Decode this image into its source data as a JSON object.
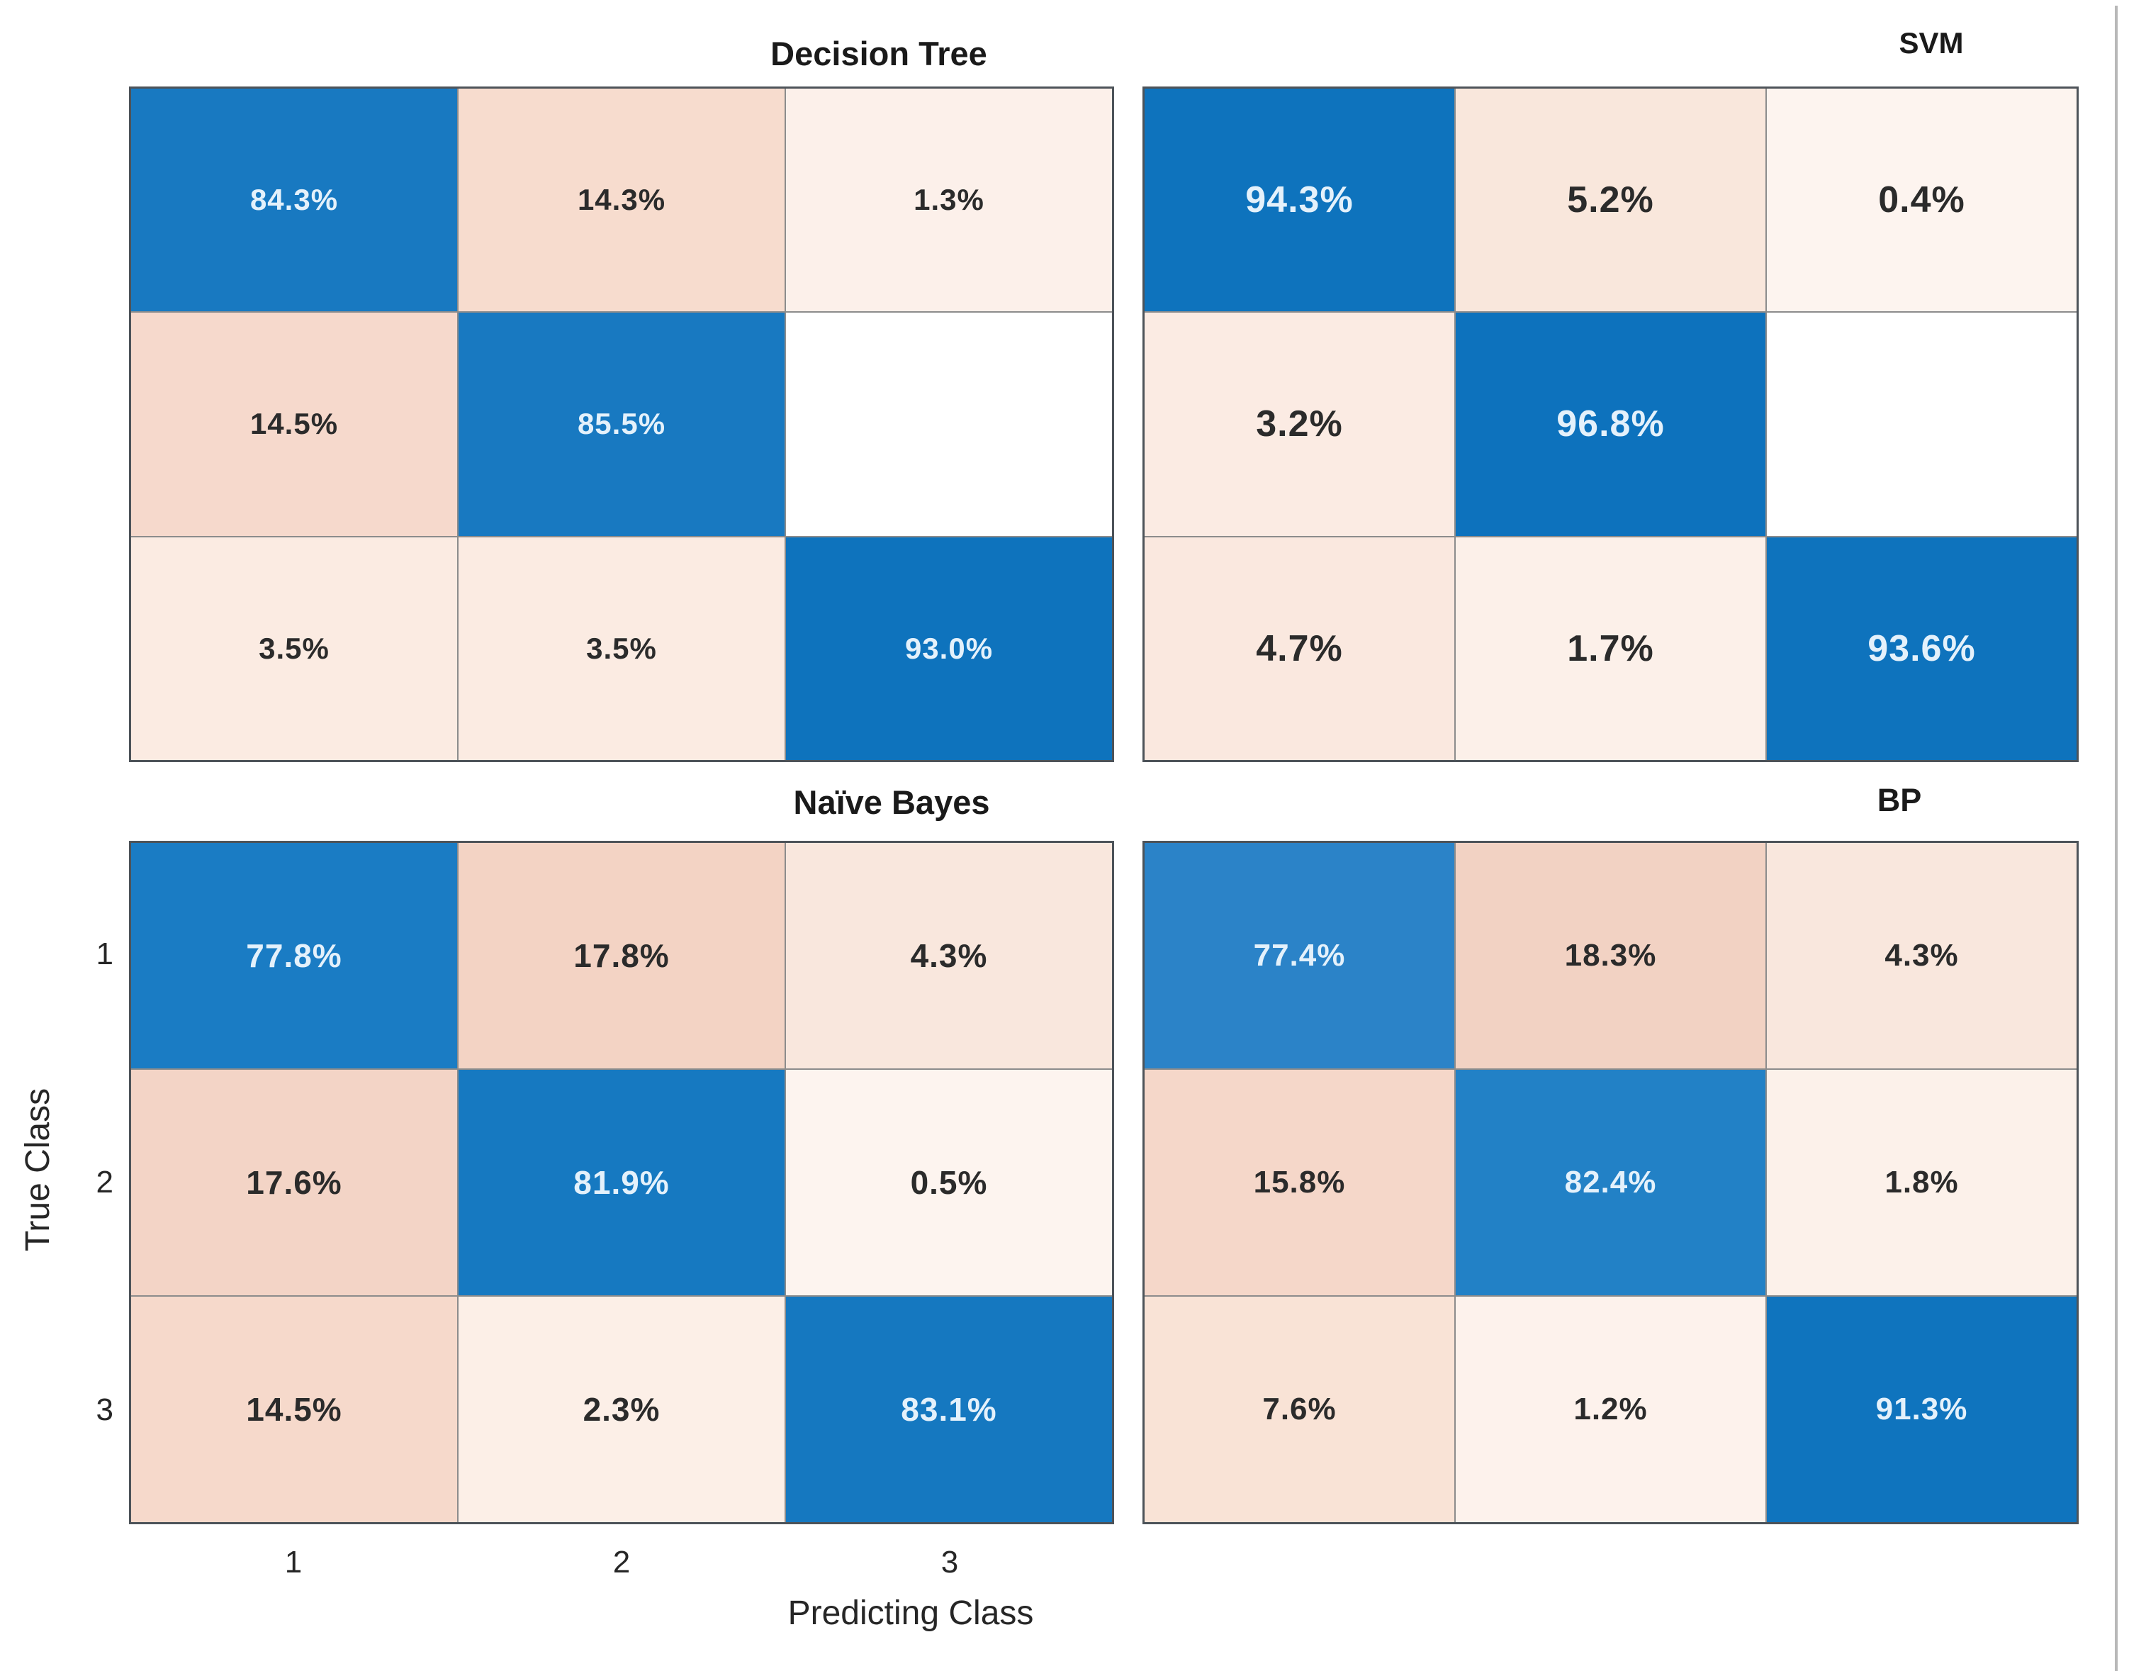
{
  "figure": {
    "xlabel": "Predicting Class",
    "ylabel": "True Class",
    "x_ticks": [
      "1",
      "2",
      "3"
    ],
    "y_ticks": [
      "1",
      "2",
      "3"
    ]
  },
  "colors": {
    "diagonal_blue_strong": "#0e73bd",
    "diagonal_blue_medium": "#1879c1",
    "diagonal_blue_light": "#2b83c8",
    "offdiagonal_pink_max": "#f2d2c3",
    "offdiagonal_pink_min": "#fdf4ef",
    "empty_cell": "#ffffff",
    "grid_line": "#8c8c8c",
    "outer_border": "#4d5359",
    "text_dark": "#2b2b2b",
    "text_light": "#e4f1fb"
  },
  "chart_data": [
    {
      "type": "heatmap",
      "title": "Decision Tree",
      "xlabel": "Predicting Class",
      "ylabel": "True Class",
      "rows": [
        "1",
        "2",
        "3"
      ],
      "cols": [
        "1",
        "2",
        "3"
      ],
      "values": [
        [
          84.3,
          14.3,
          1.3
        ],
        [
          14.5,
          85.5,
          null
        ],
        [
          3.5,
          3.5,
          93.0
        ]
      ],
      "labels": [
        [
          "84.3%",
          "14.3%",
          "1.3%"
        ],
        [
          "14.5%",
          "85.5%",
          ""
        ],
        [
          "3.5%",
          "3.5%",
          "93.0%"
        ]
      ],
      "cell_colors": [
        [
          "#1879c1",
          "#f7dcce",
          "#fcf0ea"
        ],
        [
          "#f6d9cc",
          "#1879c1",
          "#ffffff"
        ],
        [
          "#fbebe2",
          "#fbebe2",
          "#0e73bd"
        ]
      ],
      "text_colors": [
        [
          "#e4f1fb",
          "#2b2b2b",
          "#2b2b2b"
        ],
        [
          "#2b2b2b",
          "#e4f1fb",
          "#2b2b2b"
        ],
        [
          "#2b2b2b",
          "#2b2b2b",
          "#e4f1fb"
        ]
      ]
    },
    {
      "type": "heatmap",
      "title": "SVM",
      "xlabel": "Predicting Class",
      "ylabel": "True Class",
      "rows": [
        "1",
        "2",
        "3"
      ],
      "cols": [
        "1",
        "2",
        "3"
      ],
      "values": [
        [
          94.3,
          5.2,
          0.4
        ],
        [
          3.2,
          96.8,
          null
        ],
        [
          4.7,
          1.7,
          93.6
        ]
      ],
      "labels": [
        [
          "94.3%",
          "5.2%",
          "0.4%"
        ],
        [
          "3.2%",
          "96.8%",
          ""
        ],
        [
          "4.7%",
          "1.7%",
          "93.6%"
        ]
      ],
      "cell_colors": [
        [
          "#0e73bd",
          "#f9e7dc",
          "#fdf4ef"
        ],
        [
          "#fbebe3",
          "#0d72bd",
          "#ffffff"
        ],
        [
          "#fae8df",
          "#fcf0e9",
          "#0e73bd"
        ]
      ],
      "text_colors": [
        [
          "#e4f1fb",
          "#2b2b2b",
          "#2b2b2b"
        ],
        [
          "#2b2b2b",
          "#e4f1fb",
          "#2b2b2b"
        ],
        [
          "#2b2b2b",
          "#2b2b2b",
          "#e4f1fb"
        ]
      ]
    },
    {
      "type": "heatmap",
      "title": "Naïve Bayes",
      "xlabel": "Predicting Class",
      "ylabel": "True Class",
      "rows": [
        "1",
        "2",
        "3"
      ],
      "cols": [
        "1",
        "2",
        "3"
      ],
      "values": [
        [
          77.8,
          17.8,
          4.3
        ],
        [
          17.6,
          81.9,
          0.5
        ],
        [
          14.5,
          2.3,
          83.1
        ]
      ],
      "labels": [
        [
          "77.8%",
          "17.8%",
          "4.3%"
        ],
        [
          "17.6%",
          "81.9%",
          "0.5%"
        ],
        [
          "14.5%",
          "2.3%",
          "83.1%"
        ]
      ],
      "cell_colors": [
        [
          "#1a7cc4",
          "#f3d3c4",
          "#f9e7dd"
        ],
        [
          "#f3d4c6",
          "#1679c1",
          "#fdf4ef"
        ],
        [
          "#f6d9cb",
          "#fcefe7",
          "#1578c0"
        ]
      ],
      "text_colors": [
        [
          "#e4f1fb",
          "#2b2b2b",
          "#2b2b2b"
        ],
        [
          "#2b2b2b",
          "#e4f1fb",
          "#2b2b2b"
        ],
        [
          "#2b2b2b",
          "#2b2b2b",
          "#e4f1fb"
        ]
      ]
    },
    {
      "type": "heatmap",
      "title": "BP",
      "xlabel": "Predicting Class",
      "ylabel": "True Class",
      "rows": [
        "1",
        "2",
        "3"
      ],
      "cols": [
        "1",
        "2",
        "3"
      ],
      "values": [
        [
          77.4,
          18.3,
          4.3
        ],
        [
          15.8,
          82.4,
          1.8
        ],
        [
          7.6,
          1.2,
          91.3
        ]
      ],
      "labels": [
        [
          "77.4%",
          "18.3%",
          "4.3%"
        ],
        [
          "15.8%",
          "82.4%",
          "1.8%"
        ],
        [
          "7.6%",
          "1.2%",
          "91.3%"
        ]
      ],
      "cell_colors": [
        [
          "#2b83c8",
          "#f2d2c3",
          "#f9e7dd"
        ],
        [
          "#f5d7c9",
          "#2281c6",
          "#fcf1ea"
        ],
        [
          "#f9e3d6",
          "#fdf2ec",
          "#0f74be"
        ]
      ],
      "text_colors": [
        [
          "#e4f1fb",
          "#2b2b2b",
          "#2b2b2b"
        ],
        [
          "#2b2b2b",
          "#e4f1fb",
          "#2b2b2b"
        ],
        [
          "#2b2b2b",
          "#2b2b2b",
          "#e4f1fb"
        ]
      ]
    }
  ]
}
